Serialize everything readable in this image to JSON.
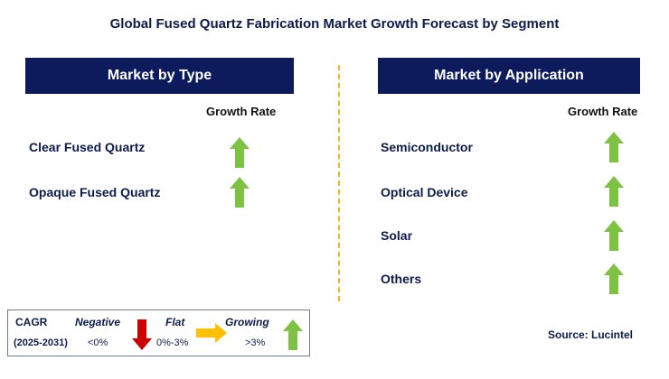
{
  "title": "Global Fused Quartz Fabrication Market Growth Forecast by Segment",
  "colors": {
    "header_bg": "#0d1b5c",
    "text": "#0d1b4c",
    "up_arrow": "#7dc242",
    "down_arrow": "#cc0000",
    "flat_arrow": "#ffc000",
    "divider": "#f5b32c"
  },
  "chart_data": {
    "type": "table",
    "title": "Global Fused Quartz Fabrication Market Growth Forecast by Segment",
    "panels": [
      {
        "header": "Market by Type",
        "column_label": "Growth Rate",
        "rows": [
          {
            "label": "Clear Fused Quartz",
            "growth": "Growing"
          },
          {
            "label": "Opaque Fused Quartz",
            "growth": "Growing"
          }
        ]
      },
      {
        "header": "Market by Application",
        "column_label": "Growth Rate",
        "rows": [
          {
            "label": "Semiconductor",
            "growth": "Growing"
          },
          {
            "label": "Optical Device",
            "growth": "Growing"
          },
          {
            "label": "Solar",
            "growth": "Growing"
          },
          {
            "label": "Others",
            "growth": "Growing"
          }
        ]
      }
    ],
    "legend": {
      "title": "CAGR",
      "period": "(2025-2031)",
      "items": [
        {
          "name": "Negative",
          "range": "<0%",
          "icon": "down-arrow-icon"
        },
        {
          "name": "Flat",
          "range": "0%-3%",
          "icon": "right-arrow-icon"
        },
        {
          "name": "Growing",
          "range": ">3%",
          "icon": "up-arrow-icon"
        }
      ]
    },
    "source": "Source: Lucintel"
  }
}
